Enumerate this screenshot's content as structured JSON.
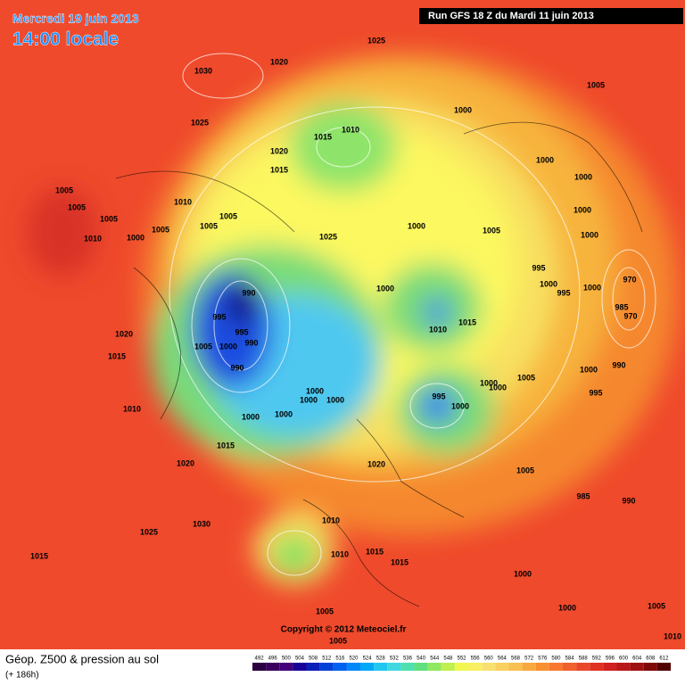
{
  "header": {
    "date": "Mercredi 19 juin 2013",
    "time": "14:00 locale",
    "run": "Run GFS 18 Z du Mardi 11 juin 2013"
  },
  "copyright": "Copyright © 2012 Meteociel.fr",
  "footer": {
    "title": "Géop. Z500 & pression au sol",
    "lead": "(+ 186h)"
  },
  "scale": {
    "values": [
      492,
      496,
      500,
      504,
      508,
      512,
      516,
      520,
      524,
      528,
      532,
      536,
      540,
      544,
      548,
      552,
      556,
      560,
      564,
      568,
      572,
      576,
      580,
      584,
      588,
      592,
      596,
      600,
      604,
      608,
      612
    ],
    "colors": [
      "#2b0040",
      "#3a0060",
      "#44007a",
      "#180098",
      "#0a20b8",
      "#0040d8",
      "#0060f0",
      "#0088f8",
      "#00a8f8",
      "#20c8f0",
      "#40d8e0",
      "#50e0b0",
      "#60e080",
      "#90e860",
      "#c0f050",
      "#f0f850",
      "#f8f060",
      "#f8e070",
      "#f8d060",
      "#f8c050",
      "#f8a840",
      "#f89030",
      "#f87830",
      "#f06030",
      "#e84828",
      "#e03020",
      "#d02020",
      "#b81818",
      "#a01010",
      "#800808",
      "#500000"
    ]
  },
  "map": {
    "isobar_labels": [
      1025,
      1030,
      1020,
      1005,
      1000,
      1025,
      1015,
      1010,
      1020,
      1015,
      1000,
      1000,
      1010,
      1005,
      1005,
      1005,
      1005,
      1005,
      1005,
      1000,
      1005,
      1000,
      1000,
      1010,
      1000,
      1025,
      970,
      995,
      1000,
      995,
      1000,
      990,
      1000,
      995,
      1015,
      1010,
      985,
      970,
      1020,
      995,
      990,
      1005,
      1000,
      1015,
      990,
      1005,
      1000,
      990,
      1000,
      1000,
      995,
      995,
      1000,
      1000,
      1000,
      1000,
      1010,
      1000,
      1000,
      1015,
      1020,
      1020,
      1005,
      985,
      990,
      1030,
      1025,
      1010,
      1015,
      1010,
      1015,
      1015,
      1000,
      1000,
      1005,
      1005,
      1005,
      1010
    ]
  }
}
